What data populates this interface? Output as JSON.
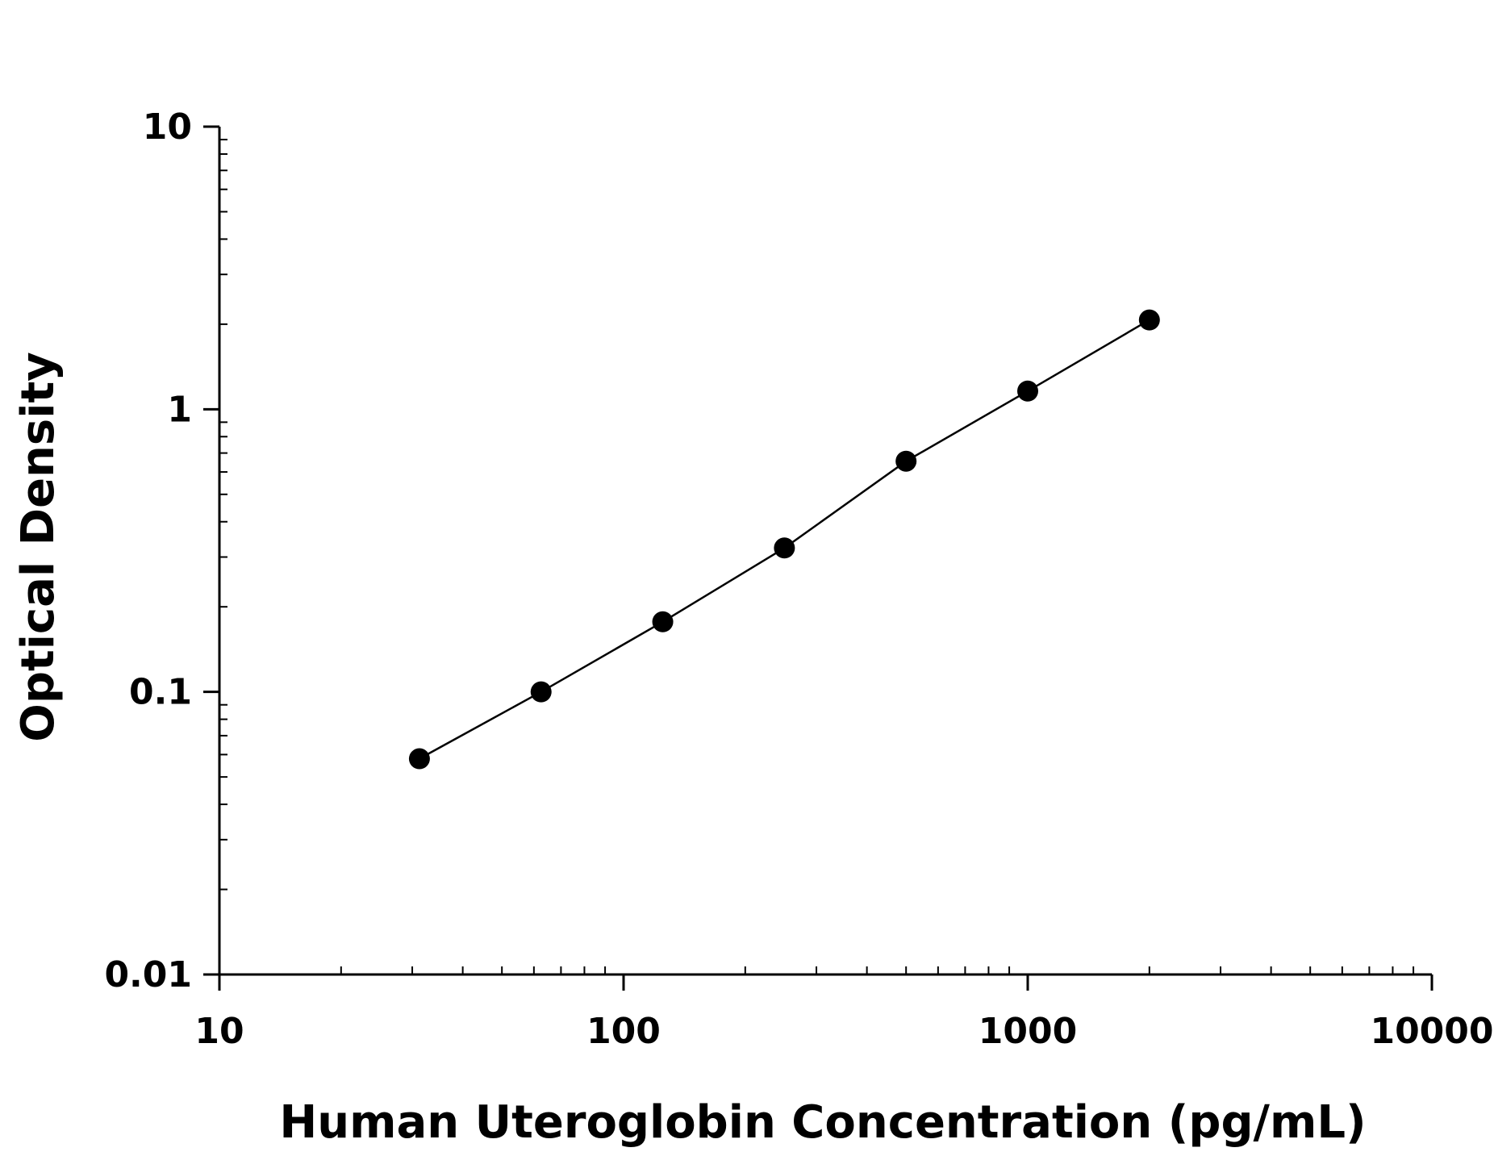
{
  "chart_data": {
    "type": "scatter",
    "title": "",
    "xlabel": "Human Uteroglobin Concentration (pg/mL)",
    "ylabel": "Optical Density",
    "x_scale": "log",
    "y_scale": "log",
    "xlim": [
      10,
      10000
    ],
    "ylim": [
      0.01,
      10
    ],
    "x_ticks": [
      10,
      100,
      1000,
      10000
    ],
    "x_tick_labels": [
      "10",
      "100",
      "1000",
      "10000"
    ],
    "y_ticks": [
      0.01,
      0.1,
      1,
      10
    ],
    "y_tick_labels": [
      "0.01",
      "0.1",
      "1",
      "10"
    ],
    "grid": false,
    "colors": {
      "marker": "#000000",
      "line": "#000000",
      "axis": "#000000"
    },
    "series": [
      {
        "x": [
          31.25,
          62.5,
          125,
          250,
          500,
          1000,
          2000
        ],
        "y": [
          0.058,
          0.1,
          0.177,
          0.323,
          0.655,
          1.16,
          2.07
        ]
      }
    ]
  }
}
